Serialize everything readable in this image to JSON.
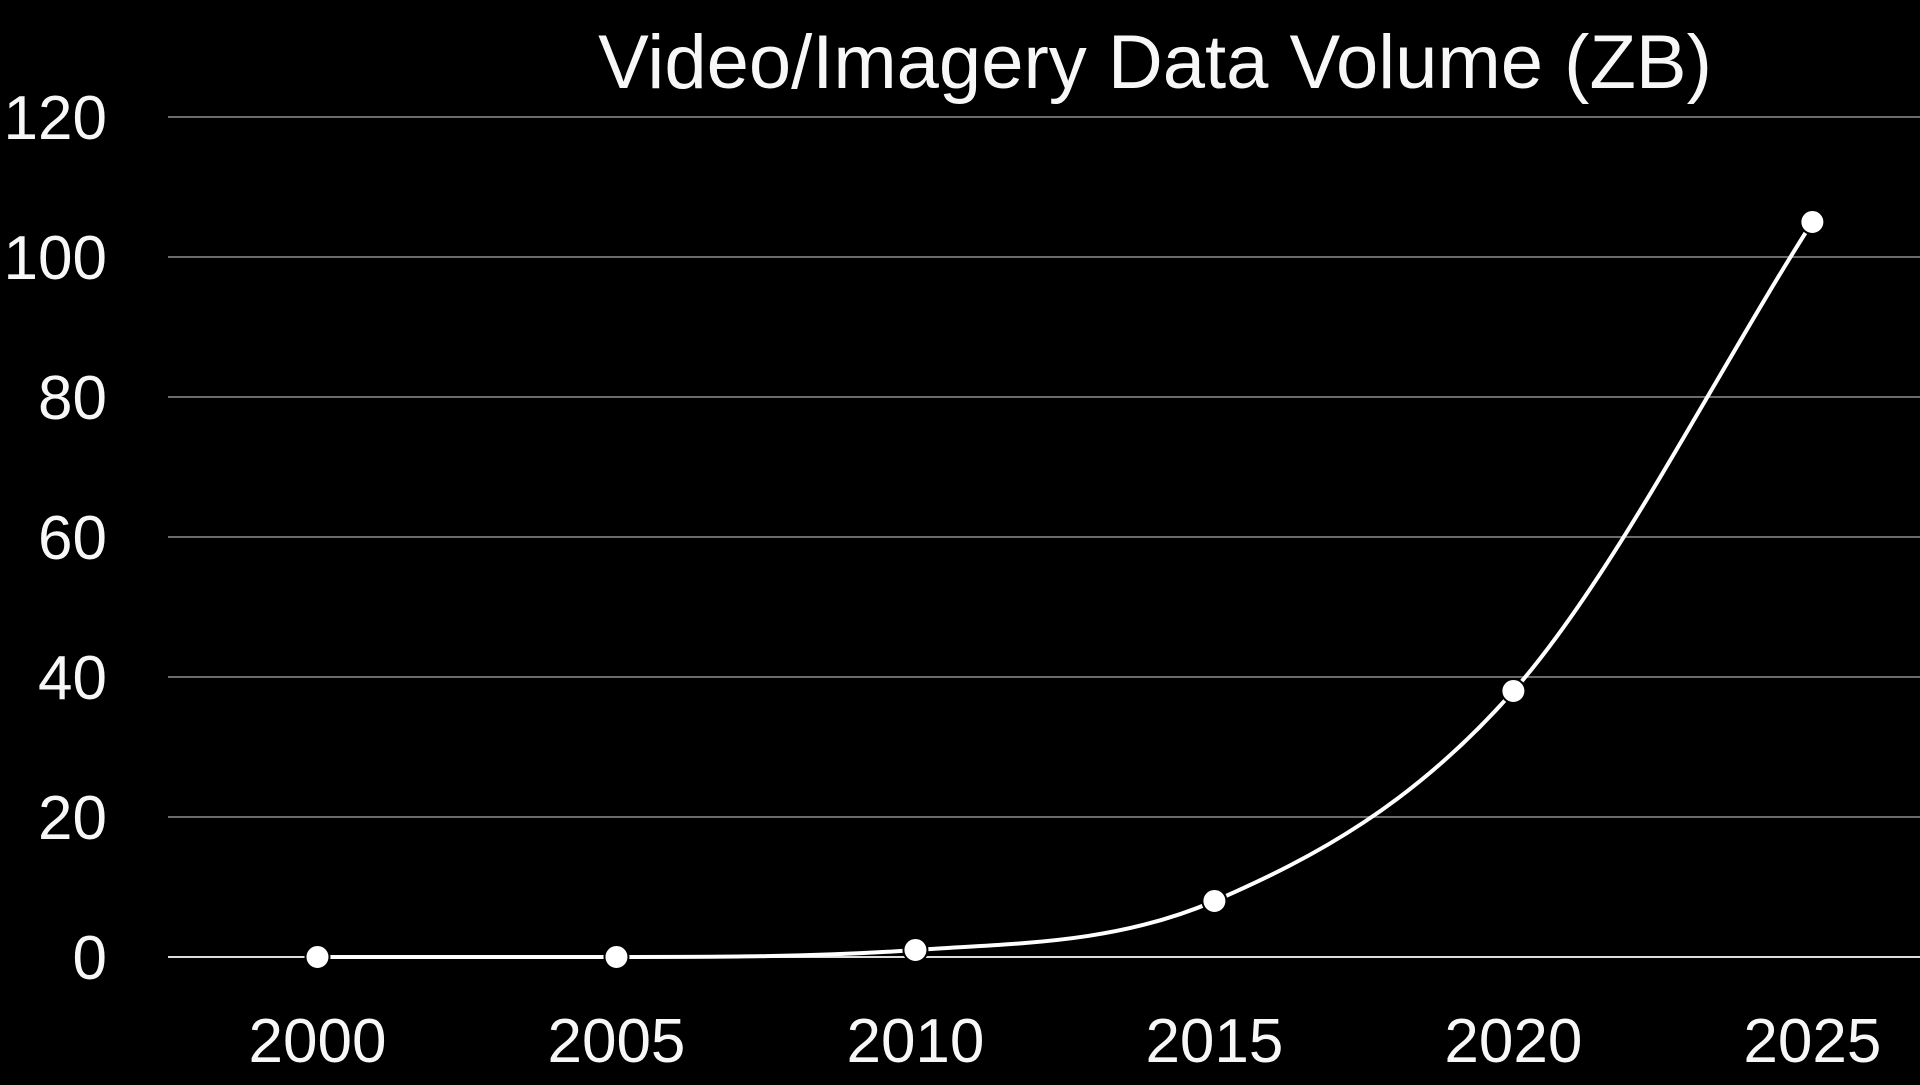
{
  "chart_data": {
    "type": "line",
    "title": "Video/Imagery Data Volume (ZB)",
    "xlabel": "",
    "ylabel": "",
    "x": [
      2000,
      2005,
      2010,
      2015,
      2020,
      2025
    ],
    "x_tick_labels": [
      "2000",
      "2005",
      "2010",
      "2015",
      "2020",
      "2025"
    ],
    "y_tick_labels": [
      "0",
      "20",
      "40",
      "60",
      "80",
      "100",
      "120"
    ],
    "series": [
      {
        "values": [
          0,
          0,
          1,
          8,
          38,
          105
        ]
      }
    ],
    "xlim": [
      1997.5,
      2026.8
    ],
    "ylim": [
      0,
      120
    ],
    "grid": true,
    "smooth": true,
    "legend": "none",
    "colors": {
      "background": "#000000",
      "line": "#ffffff",
      "grid": "#6b6b6b",
      "text": "#f7f7f7"
    }
  }
}
